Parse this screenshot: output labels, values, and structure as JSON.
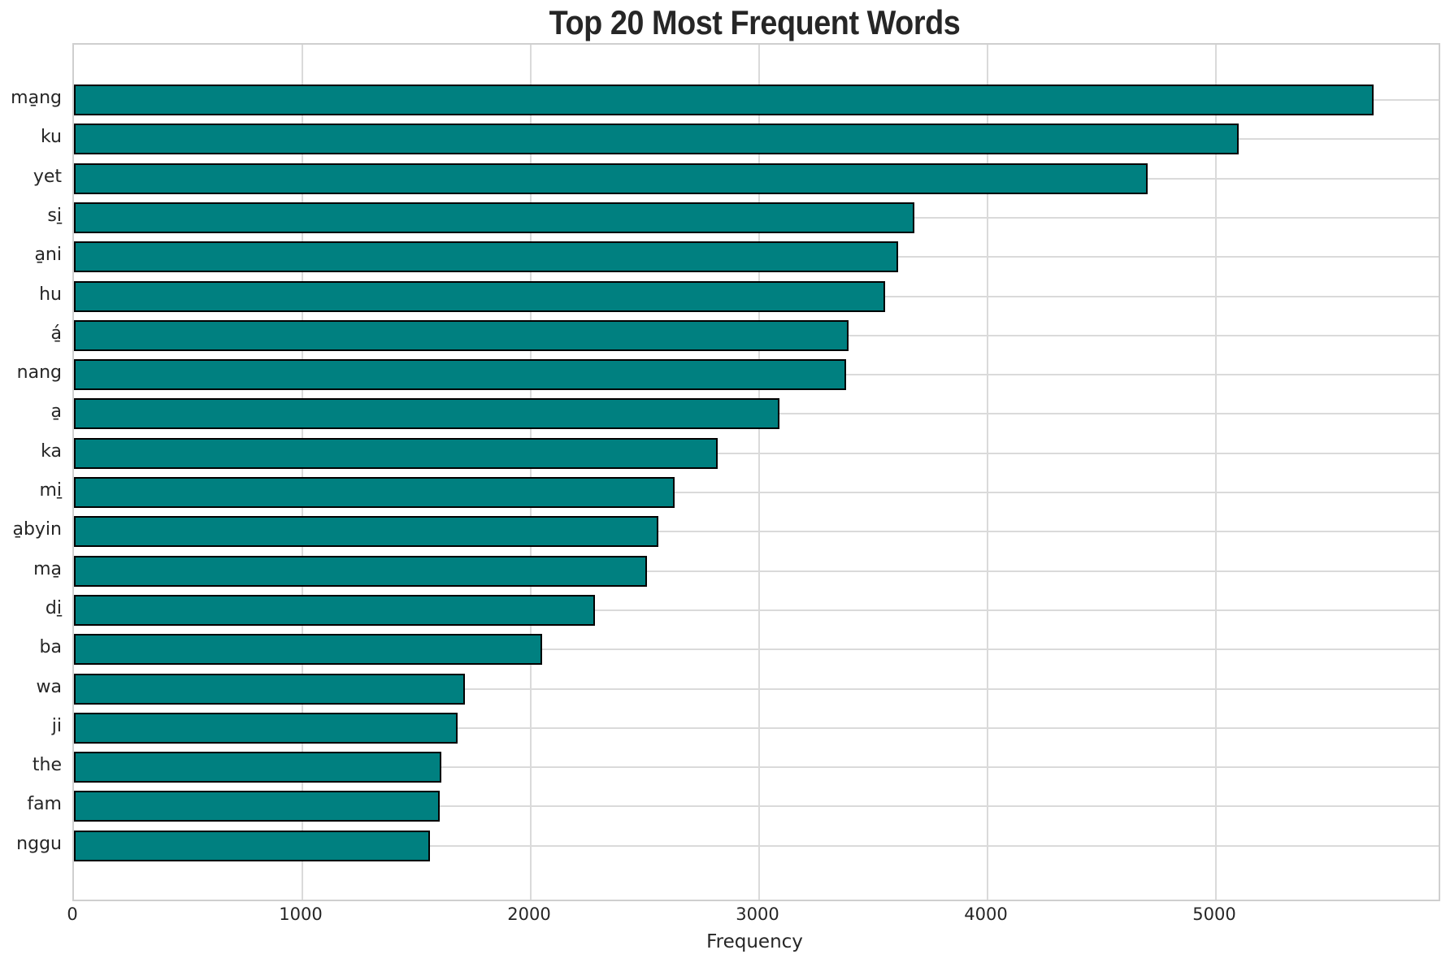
{
  "chart_data": {
    "type": "bar",
    "orientation": "horizontal",
    "title": "Top 20 Most Frequent Words",
    "xlabel": "Frequency",
    "ylabel": "",
    "categories": [
      "ma̱ng",
      "ku",
      "yet",
      "si̱",
      "a̱ni",
      "hu",
      "á̱",
      "nang",
      "a̱",
      "ka",
      "mi̱",
      "a̱byin",
      "ma̱",
      "di̱",
      "ba",
      "wa",
      "ji",
      "the",
      "fam",
      "nggu"
    ],
    "values": [
      5690,
      5100,
      4700,
      3680,
      3610,
      3550,
      3390,
      3380,
      3090,
      2820,
      2630,
      2560,
      2510,
      2280,
      2050,
      1710,
      1680,
      1610,
      1600,
      1560
    ],
    "x_ticks": [
      0,
      1000,
      2000,
      3000,
      4000,
      5000
    ],
    "xlim": [
      0,
      5975
    ],
    "grid": true,
    "legend": "none",
    "bar_color": "#008080",
    "bar_edge_color": "#000000",
    "grid_color": "#dadada",
    "background_color": "#ffffff",
    "text_color": "#262626"
  }
}
